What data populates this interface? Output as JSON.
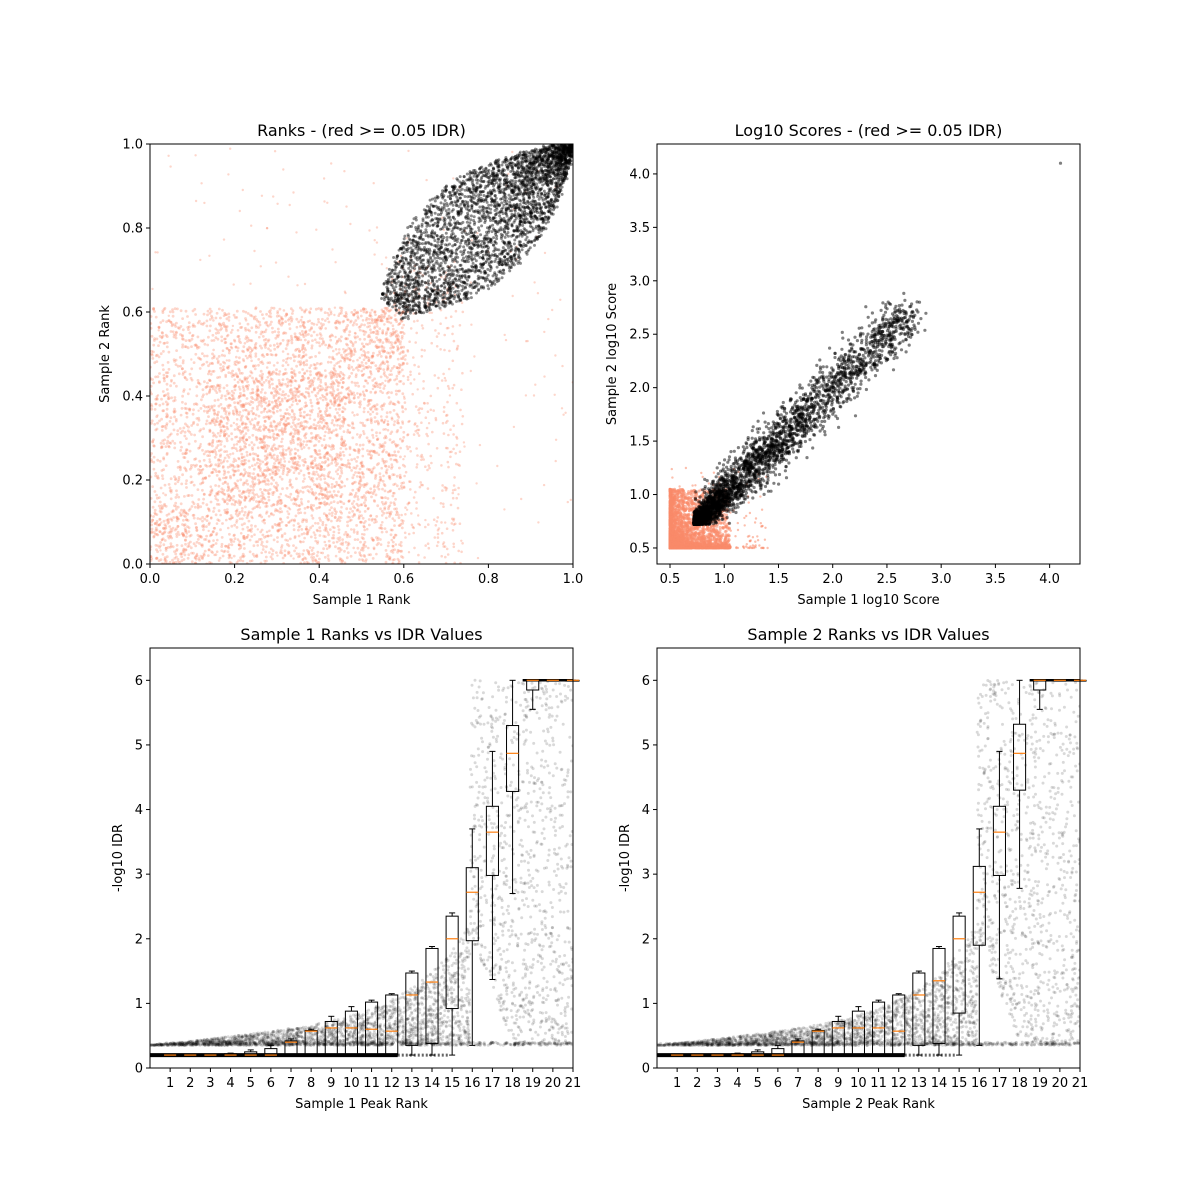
{
  "figure": {
    "colors": {
      "low_idr": "#fa8a6a",
      "high_idr": "#000000",
      "median": "#ff7f0e",
      "box": "#000000"
    }
  },
  "chart_data": [
    {
      "id": "ranks",
      "type": "scatter",
      "title": "Ranks - (red >= 0.05 IDR)",
      "xlabel": "Sample 1 Rank",
      "ylabel": "Sample 2 Rank",
      "xlim": [
        0.0,
        1.0
      ],
      "ylim": [
        0.0,
        1.0
      ],
      "xticks": [
        0.0,
        0.2,
        0.4,
        0.6,
        0.8,
        1.0
      ],
      "xtick_labels": [
        "0.0",
        "0.2",
        "0.4",
        "0.6",
        "0.8",
        "1.0"
      ],
      "yticks": [
        0.0,
        0.2,
        0.4,
        0.6,
        0.8,
        1.0
      ],
      "ytick_labels": [
        "0.0",
        "0.2",
        "0.4",
        "0.6",
        "0.8",
        "1.0"
      ],
      "series": [
        {
          "color": "#fa8a6a",
          "region": "rank < ~0.6 block structure (IDR >= 0.05)"
        },
        {
          "color": "#000000",
          "region": "upper-right lens, rank ~0.57-1.0 (IDR < 0.05)"
        }
      ]
    },
    {
      "id": "scores",
      "type": "scatter",
      "title": "Log10 Scores - (red >= 0.05 IDR)",
      "xlabel": "Sample 1 log10 Score",
      "ylabel": "Sample 2 log10 Score",
      "xlim": [
        0.38,
        4.28
      ],
      "ylim": [
        0.35,
        4.28
      ],
      "xticks": [
        0.5,
        1.0,
        1.5,
        2.0,
        2.5,
        3.0,
        3.5,
        4.0
      ],
      "xtick_labels": [
        "0.5",
        "1.0",
        "1.5",
        "2.0",
        "2.5",
        "3.0",
        "3.5",
        "4.0"
      ],
      "yticks": [
        0.5,
        1.0,
        1.5,
        2.0,
        2.5,
        3.0,
        3.5,
        4.0
      ],
      "ytick_labels": [
        "0.5",
        "1.0",
        "1.5",
        "2.0",
        "2.5",
        "3.0",
        "3.5",
        "4.0"
      ],
      "series": [
        {
          "color": "#fa8a6a",
          "region": "score 0.5-1.0 corner"
        },
        {
          "color": "#000000",
          "region": "diagonal band 0.72-2.8, outlier at 4.1"
        }
      ]
    },
    {
      "id": "s1idr",
      "type": "box",
      "title": "Sample 1 Ranks vs IDR Values",
      "xlabel": "Sample 1 Peak Rank",
      "ylabel": "-log10 IDR",
      "xlim": [
        0,
        21
      ],
      "ylim": [
        0,
        6.5
      ],
      "xticks": [
        1,
        2,
        3,
        4,
        5,
        6,
        7,
        8,
        9,
        10,
        11,
        12,
        13,
        14,
        15,
        16,
        17,
        18,
        19,
        20,
        21
      ],
      "xtick_labels": [
        "1",
        "2",
        "3",
        "4",
        "5",
        "6",
        "7",
        "8",
        "9",
        "10",
        "11",
        "12",
        "13",
        "14",
        "15",
        "16",
        "17",
        "18",
        "19",
        "20",
        "21"
      ],
      "yticks": [
        0,
        1,
        2,
        3,
        4,
        5,
        6
      ],
      "ytick_labels": [
        "0",
        "1",
        "2",
        "3",
        "4",
        "5",
        "6"
      ],
      "boxes": [
        {
          "pos": 1,
          "q1": 0.2,
          "med": 0.2,
          "q3": 0.2,
          "wlo": 0.2,
          "whi": 0.2
        },
        {
          "pos": 2,
          "q1": 0.2,
          "med": 0.2,
          "q3": 0.2,
          "wlo": 0.2,
          "whi": 0.2
        },
        {
          "pos": 3,
          "q1": 0.2,
          "med": 0.2,
          "q3": 0.2,
          "wlo": 0.2,
          "whi": 0.2
        },
        {
          "pos": 4,
          "q1": 0.2,
          "med": 0.2,
          "q3": 0.22,
          "wlo": 0.2,
          "whi": 0.23
        },
        {
          "pos": 5,
          "q1": 0.2,
          "med": 0.2,
          "q3": 0.25,
          "wlo": 0.2,
          "whi": 0.28
        },
        {
          "pos": 6,
          "q1": 0.2,
          "med": 0.2,
          "q3": 0.3,
          "wlo": 0.2,
          "whi": 0.35
        },
        {
          "pos": 7,
          "q1": 0.2,
          "med": 0.4,
          "q3": 0.42,
          "wlo": 0.2,
          "whi": 0.45
        },
        {
          "pos": 8,
          "q1": 0.2,
          "med": 0.57,
          "q3": 0.58,
          "wlo": 0.2,
          "whi": 0.6
        },
        {
          "pos": 9,
          "q1": 0.2,
          "med": 0.62,
          "q3": 0.72,
          "wlo": 0.2,
          "whi": 0.8
        },
        {
          "pos": 10,
          "q1": 0.2,
          "med": 0.62,
          "q3": 0.88,
          "wlo": 0.2,
          "whi": 0.95
        },
        {
          "pos": 11,
          "q1": 0.2,
          "med": 0.6,
          "q3": 1.02,
          "wlo": 0.2,
          "whi": 1.05
        },
        {
          "pos": 12,
          "q1": 0.2,
          "med": 0.57,
          "q3": 1.13,
          "wlo": 0.2,
          "whi": 1.15
        },
        {
          "pos": 13,
          "q1": 0.35,
          "med": 1.13,
          "q3": 1.47,
          "wlo": 0.2,
          "whi": 1.5
        },
        {
          "pos": 14,
          "q1": 0.38,
          "med": 1.33,
          "q3": 1.85,
          "wlo": 0.2,
          "whi": 1.88
        },
        {
          "pos": 15,
          "q1": 0.92,
          "med": 2.0,
          "q3": 2.35,
          "wlo": 0.2,
          "whi": 2.4
        },
        {
          "pos": 16,
          "q1": 1.97,
          "med": 2.72,
          "q3": 3.1,
          "wlo": 0.35,
          "whi": 3.7
        },
        {
          "pos": 17,
          "q1": 2.98,
          "med": 3.65,
          "q3": 4.05,
          "wlo": 1.37,
          "whi": 4.9
        },
        {
          "pos": 18,
          "q1": 4.28,
          "med": 4.87,
          "q3": 5.3,
          "wlo": 2.7,
          "whi": 6.0
        },
        {
          "pos": 19,
          "q1": 5.85,
          "med": 6.0,
          "q3": 6.0,
          "wlo": 5.55,
          "whi": 6.0
        },
        {
          "pos": 20,
          "q1": 6.0,
          "med": 6.0,
          "q3": 6.0,
          "wlo": 6.0,
          "whi": 6.0
        },
        {
          "pos": 21,
          "q1": 6.0,
          "med": 6.0,
          "q3": 6.0,
          "wlo": 6.0,
          "whi": 6.0
        }
      ]
    },
    {
      "id": "s2idr",
      "type": "box",
      "title": "Sample 2 Ranks vs IDR Values",
      "xlabel": "Sample 2 Peak Rank",
      "ylabel": "-log10 IDR",
      "xlim": [
        0,
        21
      ],
      "ylim": [
        0,
        6.5
      ],
      "xticks": [
        1,
        2,
        3,
        4,
        5,
        6,
        7,
        8,
        9,
        10,
        11,
        12,
        13,
        14,
        15,
        16,
        17,
        18,
        19,
        20,
        21
      ],
      "xtick_labels": [
        "1",
        "2",
        "3",
        "4",
        "5",
        "6",
        "7",
        "8",
        "9",
        "10",
        "11",
        "12",
        "13",
        "14",
        "15",
        "16",
        "17",
        "18",
        "19",
        "20",
        "21"
      ],
      "yticks": [
        0,
        1,
        2,
        3,
        4,
        5,
        6
      ],
      "ytick_labels": [
        "0",
        "1",
        "2",
        "3",
        "4",
        "5",
        "6"
      ],
      "boxes": [
        {
          "pos": 1,
          "q1": 0.2,
          "med": 0.2,
          "q3": 0.2,
          "wlo": 0.2,
          "whi": 0.2
        },
        {
          "pos": 2,
          "q1": 0.2,
          "med": 0.2,
          "q3": 0.2,
          "wlo": 0.2,
          "whi": 0.2
        },
        {
          "pos": 3,
          "q1": 0.2,
          "med": 0.2,
          "q3": 0.2,
          "wlo": 0.2,
          "whi": 0.2
        },
        {
          "pos": 4,
          "q1": 0.2,
          "med": 0.2,
          "q3": 0.22,
          "wlo": 0.2,
          "whi": 0.23
        },
        {
          "pos": 5,
          "q1": 0.2,
          "med": 0.2,
          "q3": 0.25,
          "wlo": 0.2,
          "whi": 0.28
        },
        {
          "pos": 6,
          "q1": 0.2,
          "med": 0.2,
          "q3": 0.3,
          "wlo": 0.2,
          "whi": 0.35
        },
        {
          "pos": 7,
          "q1": 0.2,
          "med": 0.4,
          "q3": 0.42,
          "wlo": 0.2,
          "whi": 0.45
        },
        {
          "pos": 8,
          "q1": 0.2,
          "med": 0.57,
          "q3": 0.58,
          "wlo": 0.2,
          "whi": 0.6
        },
        {
          "pos": 9,
          "q1": 0.2,
          "med": 0.62,
          "q3": 0.72,
          "wlo": 0.2,
          "whi": 0.8
        },
        {
          "pos": 10,
          "q1": 0.2,
          "med": 0.62,
          "q3": 0.88,
          "wlo": 0.2,
          "whi": 0.95
        },
        {
          "pos": 11,
          "q1": 0.2,
          "med": 0.62,
          "q3": 1.02,
          "wlo": 0.2,
          "whi": 1.05
        },
        {
          "pos": 12,
          "q1": 0.2,
          "med": 0.57,
          "q3": 1.13,
          "wlo": 0.2,
          "whi": 1.15
        },
        {
          "pos": 13,
          "q1": 0.35,
          "med": 1.13,
          "q3": 1.47,
          "wlo": 0.2,
          "whi": 1.5
        },
        {
          "pos": 14,
          "q1": 0.38,
          "med": 1.35,
          "q3": 1.85,
          "wlo": 0.2,
          "whi": 1.88
        },
        {
          "pos": 15,
          "q1": 0.85,
          "med": 2.0,
          "q3": 2.35,
          "wlo": 0.2,
          "whi": 2.4
        },
        {
          "pos": 16,
          "q1": 1.9,
          "med": 2.72,
          "q3": 3.12,
          "wlo": 0.35,
          "whi": 3.7
        },
        {
          "pos": 17,
          "q1": 2.98,
          "med": 3.65,
          "q3": 4.05,
          "wlo": 1.38,
          "whi": 4.9
        },
        {
          "pos": 18,
          "q1": 4.3,
          "med": 4.87,
          "q3": 5.32,
          "wlo": 2.78,
          "whi": 6.0
        },
        {
          "pos": 19,
          "q1": 5.85,
          "med": 6.0,
          "q3": 6.0,
          "wlo": 5.55,
          "whi": 6.0
        },
        {
          "pos": 20,
          "q1": 6.0,
          "med": 6.0,
          "q3": 6.0,
          "wlo": 6.0,
          "whi": 6.0
        },
        {
          "pos": 21,
          "q1": 6.0,
          "med": 6.0,
          "q3": 6.0,
          "wlo": 6.0,
          "whi": 6.0
        }
      ]
    }
  ]
}
